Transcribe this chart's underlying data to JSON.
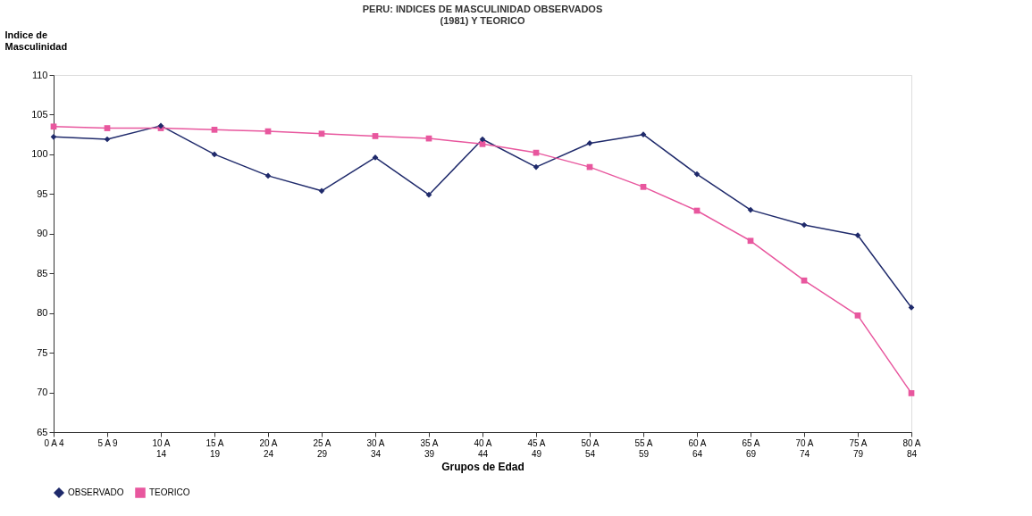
{
  "chart_data": {
    "type": "line",
    "title": "PERU: INDICES DE MASCULINIDAD OBSERVADOS\n(1981) Y TEORICO",
    "xlabel": "Grupos de Edad",
    "ylabel": "Indice de Masculinidad",
    "categories": [
      "0 A 4",
      "5 A 9",
      "10 A\n14",
      "15 A\n19",
      "20 A\n24",
      "25 A\n29",
      "30 A\n34",
      "35 A\n39",
      "40 A\n44",
      "45 A\n49",
      "50 A\n54",
      "55 A\n59",
      "60 A\n64",
      "65 A\n69",
      "70 A\n74",
      "75 A\n79",
      "80 A\n84"
    ],
    "series": [
      {
        "name": "OBSERVADO",
        "color": "#1f2a6b",
        "marker": "diamond",
        "values": [
          102.2,
          101.9,
          103.6,
          100.0,
          97.3,
          95.4,
          99.6,
          94.9,
          101.9,
          98.4,
          101.4,
          102.5,
          97.5,
          93.0,
          91.1,
          89.8,
          80.7
        ]
      },
      {
        "name": "TEORICO",
        "color": "#e8579e",
        "marker": "square",
        "values": [
          103.5,
          103.3,
          103.3,
          103.1,
          102.9,
          102.6,
          102.3,
          102.0,
          101.3,
          100.2,
          98.4,
          95.9,
          92.9,
          89.1,
          84.1,
          79.7,
          69.9
        ]
      }
    ],
    "ylim": [
      65,
      110
    ],
    "yticks": [
      65,
      70,
      75,
      80,
      85,
      90,
      95,
      100,
      105,
      110
    ],
    "grid": false,
    "legend": "bottom",
    "line_style": "solid"
  }
}
